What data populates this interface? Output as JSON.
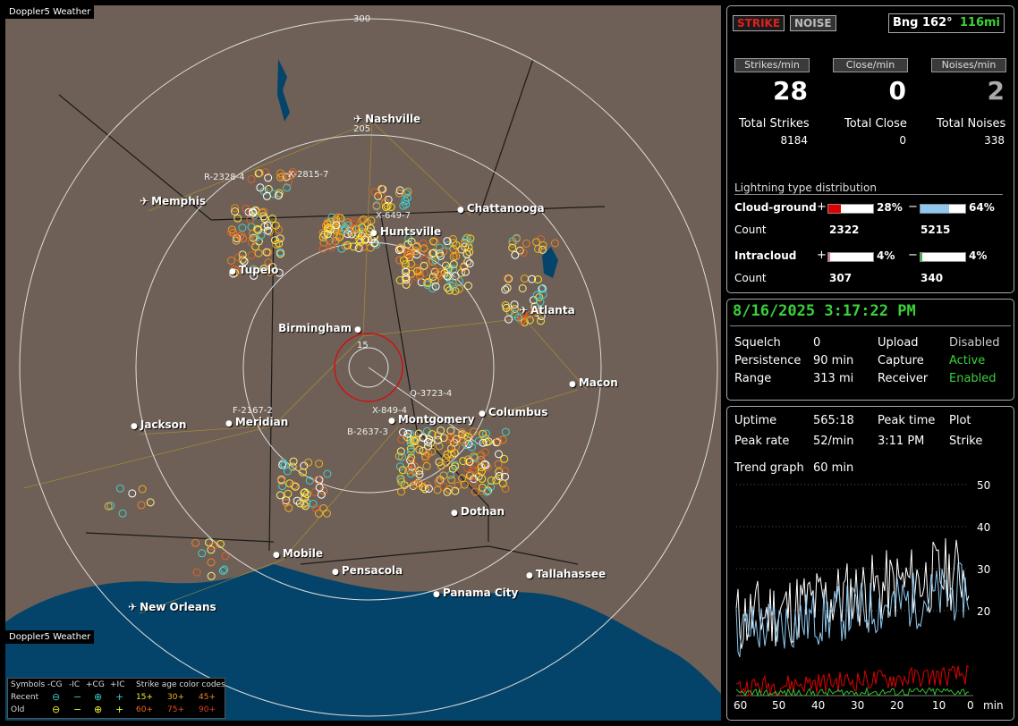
{
  "map": {
    "title": "Doppler5 Weather",
    "ring_labels": [
      "300",
      "205",
      "15"
    ],
    "cities": [
      {
        "name": "Nashville",
        "airport": true
      },
      {
        "name": "Memphis",
        "airport": true
      },
      {
        "name": "Chattanooga",
        "airport": false
      },
      {
        "name": "Huntsville",
        "airport": false
      },
      {
        "name": "Tupelo",
        "airport": false
      },
      {
        "name": "Atlanta",
        "airport": true
      },
      {
        "name": "Birmingham",
        "airport": false
      },
      {
        "name": "Macon",
        "airport": false
      },
      {
        "name": "Jackson",
        "airport": false
      },
      {
        "name": "Meridian",
        "airport": false
      },
      {
        "name": "Montgomery",
        "airport": false
      },
      {
        "name": "Columbus",
        "airport": false
      },
      {
        "name": "Dothan",
        "airport": false
      },
      {
        "name": "Mobile",
        "airport": false
      },
      {
        "name": "Pensacola",
        "airport": false
      },
      {
        "name": "Tallahassee",
        "airport": false
      },
      {
        "name": "Panama City",
        "airport": false
      },
      {
        "name": "New Orleans",
        "airport": true
      }
    ],
    "storm_labels": [
      "R-2328-4",
      "X-2815-7",
      "X-649-7",
      "F-2167-2",
      "Q-3723-4",
      "X-849-4",
      "B-2637-3"
    ],
    "legend": {
      "symbols_label": "Symbols",
      "cols": [
        "-CG",
        "-IC",
        "+CG",
        "+IC"
      ],
      "age_label": "Strike age color codes",
      "recent_label": "Recent",
      "old_label": "Old",
      "recent_ages": [
        "15+",
        "30+",
        "45+"
      ],
      "old_ages": [
        "60+",
        "75+",
        "90+"
      ]
    }
  },
  "top": {
    "strike_btn": "STRIKE",
    "noise_btn": "NOISE",
    "bearing": "Bng 162°",
    "distance": "116mi",
    "hdr_strikes": "Strikes/min",
    "hdr_close": "Close/min",
    "hdr_noises": "Noises/min",
    "strikes_per_min": "28",
    "close_per_min": "0",
    "noises_per_min": "2",
    "total_strikes_label": "Total Strikes",
    "total_close_label": "Total Close",
    "total_noises_label": "Total Noises",
    "total_strikes": "8184",
    "total_close": "0",
    "total_noises": "338",
    "dist_title": "Lightning type distribution",
    "cg_label": "Cloud-ground",
    "plus": "+",
    "minus": "−",
    "cg_pos_pct": "28%",
    "cg_neg_pct": "64%",
    "count_label": "Count",
    "cg_pos_count": "2322",
    "cg_neg_count": "5215",
    "ic_label": "Intracloud",
    "ic_pos_pct": "4%",
    "ic_neg_pct": "4%",
    "ic_pos_count": "307",
    "ic_neg_count": "340",
    "bar_fracs": {
      "cg_pos": 0.28,
      "cg_neg": 0.64,
      "ic_pos": 0.04,
      "ic_neg": 0.04
    },
    "colors": {
      "cg_pos": "#e00000",
      "cg_neg": "#8ec8f0",
      "ic_pos": "#e070b0",
      "ic_neg": "#30c030"
    }
  },
  "status": {
    "datetime": "8/16/2025 3:17:22 PM",
    "squelch_label": "Squelch",
    "squelch": "0",
    "upload_label": "Upload",
    "upload": "Disabled",
    "persistence_label": "Persistence",
    "persistence": "90 min",
    "capture_label": "Capture",
    "capture": "Active",
    "range_label": "Range",
    "range": "313 mi",
    "receiver_label": "Receiver",
    "receiver": "Enabled"
  },
  "trend": {
    "uptime_label": "Uptime",
    "uptime": "565:18",
    "peak_time_label": "Peak time",
    "plot_label": "Plot",
    "peak_rate_label": "Peak rate",
    "peak_rate": "52/min",
    "peak_time": "3:11 PM",
    "plot": "Strike",
    "trend_label": "Trend graph",
    "trend_window": "60 min",
    "y_ticks": [
      "50",
      "40",
      "30",
      "20"
    ],
    "x_ticks": [
      "60",
      "50",
      "40",
      "30",
      "20",
      "10",
      "0"
    ],
    "x_unit": "min"
  }
}
